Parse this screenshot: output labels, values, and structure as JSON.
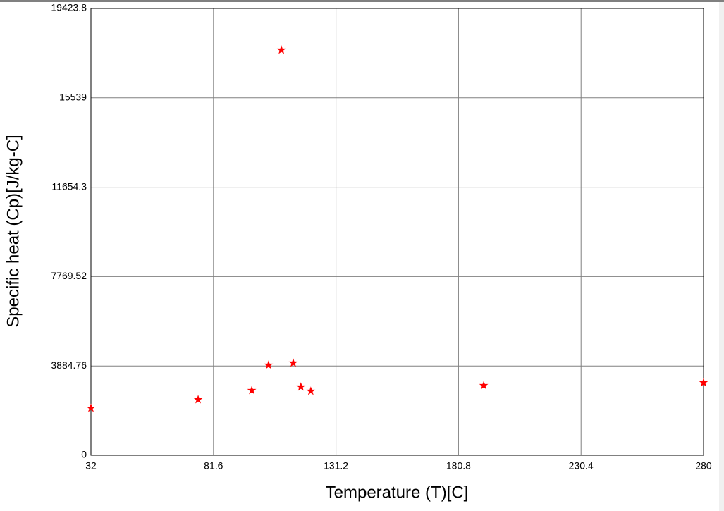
{
  "chart_data": {
    "type": "scatter",
    "x_label": "Temperature (T)[C]",
    "y_label": "Specific heat (Cp)[J/kg-C]",
    "series": [
      {
        "color": "#ff0000",
        "x": [
          32,
          75.4,
          97.1,
          103.9,
          109.1,
          113.9,
          117.0,
          121.0,
          191.0,
          280
        ],
        "values": [
          2050,
          2420,
          2819,
          3922,
          17618,
          4014,
          2972,
          2788,
          3033,
          3156
        ]
      }
    ],
    "xlim": [
      32,
      280
    ],
    "xticks": [
      32,
      81.6,
      131.2,
      180.8,
      230.4,
      280
    ],
    "ylim": [
      0,
      19423.8
    ],
    "yticks": [
      0,
      3884.76,
      7769.52,
      11654.3,
      15539,
      19423.8
    ],
    "grid": true
  }
}
